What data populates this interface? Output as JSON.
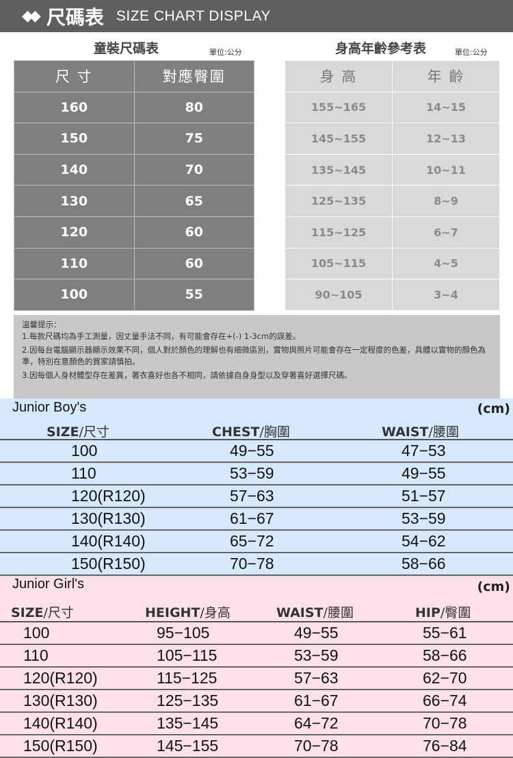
{
  "header": {
    "logo_icon": "diamond-logo-icon",
    "title_zh": "尺碼表",
    "title_en": "SIZE CHART DISPLAY"
  },
  "kids_table": {
    "title": "童裝尺碼表",
    "unit": "單位:公分",
    "headers": [
      "尺 寸",
      "對應臀圍"
    ],
    "rows": [
      [
        "160",
        "80"
      ],
      [
        "150",
        "75"
      ],
      [
        "140",
        "70"
      ],
      [
        "130",
        "65"
      ],
      [
        "120",
        "60"
      ],
      [
        "110",
        "60"
      ],
      [
        "100",
        "55"
      ]
    ]
  },
  "age_table": {
    "title": "身高年齡參考表",
    "unit": "單位:公分",
    "headers": [
      "身 高",
      "年 齡"
    ],
    "rows": [
      [
        "155~165",
        "14~15"
      ],
      [
        "145~155",
        "12~13"
      ],
      [
        "135~145",
        "10~11"
      ],
      [
        "125~135",
        "8~9"
      ],
      [
        "115~125",
        "6~7"
      ],
      [
        "105~115",
        "4~5"
      ],
      [
        "90~105",
        "3~4"
      ]
    ]
  },
  "notes": {
    "heading": "溫馨提示：",
    "items": [
      "1.每款尺碼均為手工測量，因丈量手法不同，有可能會存在+(-) 1-3cm的誤差。",
      "2.因每台電腦顯示器顯示效果不同，個人對於顏色的理解也有細微區別，實物與照片可能會存在一定程度的色差，具體以實物的顏色為準，特別在意顏色的買家請慎拍。",
      "3.因每個人身材體型存在差異，著衣喜好也各不相同，請依據自身身型以及穿著喜好選擇尺碼。"
    ]
  },
  "boys": {
    "title": "Junior Boy's",
    "unit": "(cm)",
    "headers": [
      [
        "SIZE",
        "尺寸"
      ],
      [
        "CHEST",
        "胸圍"
      ],
      [
        "WAIST",
        "腰圍"
      ]
    ],
    "rows": [
      [
        "100",
        "49−55",
        "47−53"
      ],
      [
        "110",
        "53−59",
        "49−55"
      ],
      [
        "120(R120)",
        "57−63",
        "51−57"
      ],
      [
        "130(R130)",
        "61−67",
        "53−59"
      ],
      [
        "140(R140)",
        "65−72",
        "54−62"
      ],
      [
        "150(R150)",
        "70−78",
        "58−66"
      ]
    ]
  },
  "girls": {
    "title": "Junior Girl's",
    "unit": "(cm)",
    "headers": [
      [
        "SIZE",
        "尺寸"
      ],
      [
        "HEIGHT",
        "身高"
      ],
      [
        "WAIST",
        "腰圍"
      ],
      [
        "HIP",
        "臀圍"
      ]
    ],
    "rows": [
      [
        "100",
        "95−105",
        "49−55",
        "55−61"
      ],
      [
        "110",
        "105−115",
        "53−59",
        "58−66"
      ],
      [
        "120(R120)",
        "115−125",
        "57−63",
        "62−70"
      ],
      [
        "130(R130)",
        "125−135",
        "61−67",
        "66−74"
      ],
      [
        "140(R140)",
        "135−145",
        "64−72",
        "70−78"
      ],
      [
        "150(R150)",
        "145−155",
        "70−78",
        "76−84"
      ]
    ]
  }
}
